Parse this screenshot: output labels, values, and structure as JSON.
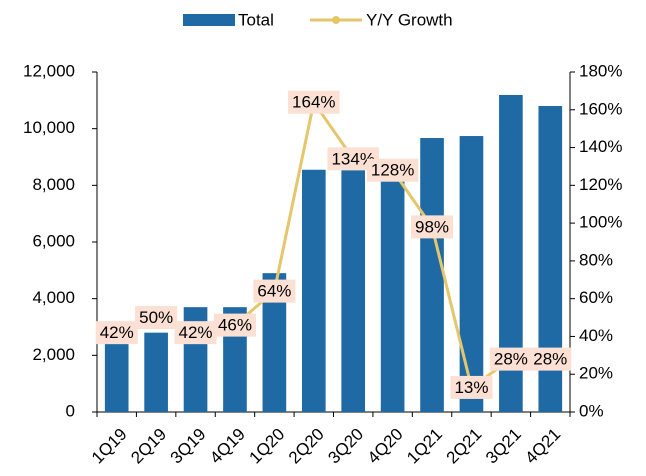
{
  "chart_data": {
    "type": "bar_line",
    "categories": [
      "1Q19",
      "2Q19",
      "3Q19",
      "4Q19",
      "1Q20",
      "2Q20",
      "3Q20",
      "4Q20",
      "1Q21",
      "2Q21",
      "3Q21",
      "4Q21"
    ],
    "series": [
      {
        "name": "Total",
        "color": "#1f6aa5",
        "values": [
          2600,
          2800,
          3700,
          3700,
          4900,
          8550,
          8700,
          8400,
          9670,
          9740,
          11190,
          10800
        ]
      },
      {
        "name": "Y/Y Growth",
        "color": "#e6c66a",
        "axis": "y2",
        "values": [
          42,
          50,
          42,
          46,
          64,
          164,
          134,
          128,
          98,
          13,
          28,
          28
        ],
        "value_labels": [
          "42%",
          "50%",
          "42%",
          "46%",
          "64%",
          "164%",
          "134%",
          "128%",
          "98%",
          "13%",
          "28%",
          "28%"
        ]
      }
    ],
    "ylim": [
      0,
      12000
    ],
    "yticks": [
      0,
      {
        "value": 2000,
        "label": "2,000"
      },
      {
        "value": 4000,
        "label": "4,000"
      },
      {
        "value": 6000,
        "label": "6,000"
      },
      {
        "value": 8000,
        "label": "8,000"
      },
      {
        "value": 10000,
        "label": "10,000"
      },
      {
        "value": 12000,
        "label": "12,000"
      }
    ],
    "y2lim": [
      0,
      180
    ],
    "y2ticks": [
      {
        "value": 0,
        "label": "0%"
      },
      {
        "value": 20,
        "label": "20%"
      },
      {
        "value": 40,
        "label": "40%"
      },
      {
        "value": 60,
        "label": "60%"
      },
      {
        "value": 80,
        "label": "80%"
      },
      {
        "value": 100,
        "label": "100%"
      },
      {
        "value": 120,
        "label": "120%"
      },
      {
        "value": 140,
        "label": "140%"
      },
      {
        "value": 160,
        "label": "160%"
      },
      {
        "value": 180,
        "label": "180%"
      }
    ],
    "legend": "top"
  }
}
